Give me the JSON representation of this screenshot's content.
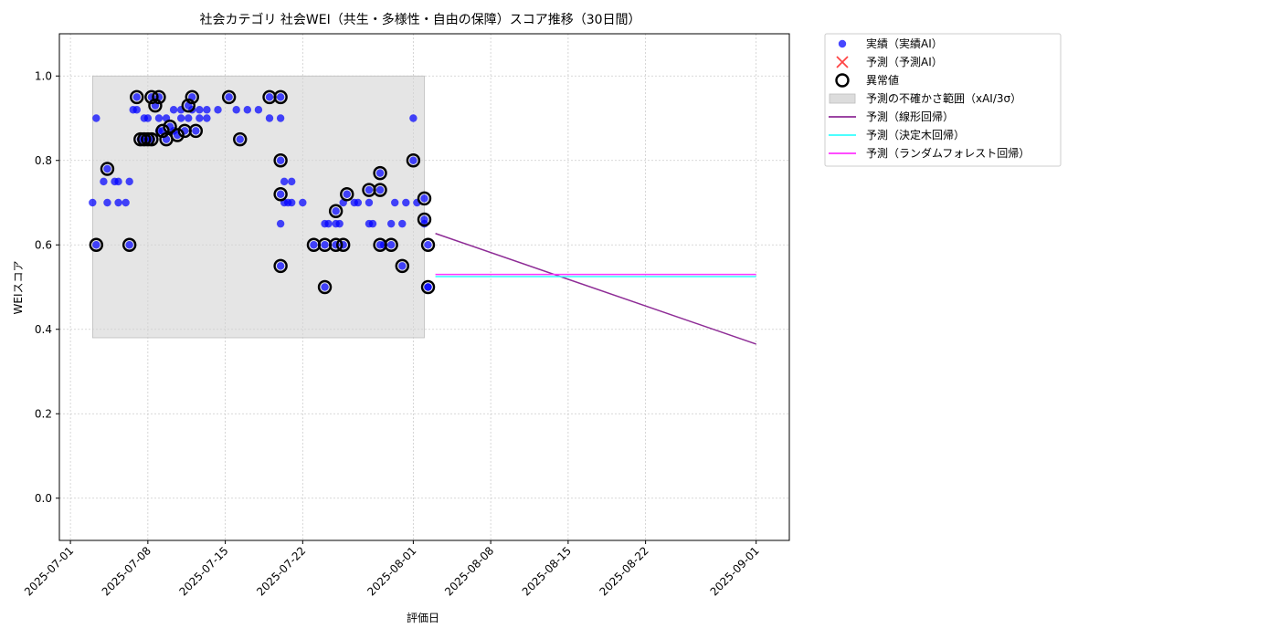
{
  "chart_data": {
    "type": "scatter",
    "title": "社会カテゴリ 社会WEI（共生・多様性・自由の保障）スコア推移（30日間）",
    "xlabel": "評価日",
    "ylabel": "WEIスコア",
    "xlim": [
      "2025-06-30",
      "2025-09-04"
    ],
    "ylim": [
      -0.1,
      1.1
    ],
    "grid": true,
    "legend_position": "outside-top-right",
    "x_ticks": [
      "2025-07-01",
      "2025-07-08",
      "2025-07-15",
      "2025-07-22",
      "2025-08-01",
      "2025-08-08",
      "2025-08-15",
      "2025-08-22",
      "2025-09-01"
    ],
    "y_ticks": [
      "0.0",
      "0.2",
      "0.4",
      "0.6",
      "0.8",
      "1.0"
    ],
    "legend": [
      {
        "label": "実績（実績AI）",
        "marker": "dot",
        "color": "#0000ff"
      },
      {
        "label": "予測（予測AI）",
        "marker": "x",
        "color": "#ff4444"
      },
      {
        "label": "異常値",
        "marker": "ring",
        "color": "#000000"
      },
      {
        "label": "予測の不確かさ範囲（xAI/3σ）",
        "marker": "band",
        "color": "#d3d3d3"
      },
      {
        "label": "予測（線形回帰）",
        "marker": "line",
        "color": "#8e2c96"
      },
      {
        "label": "予測（決定木回帰）",
        "marker": "line",
        "color": "#33ffff"
      },
      {
        "label": "予測（ランダムフォレスト回帰）",
        "marker": "line",
        "color": "#ff33ff"
      }
    ],
    "uncertainty_band": {
      "x": [
        "2025-07-03",
        "2025-08-02"
      ],
      "y": [
        0.38,
        1.0
      ]
    },
    "series": [
      {
        "name": "実績（実績AI）",
        "kind": "scatter",
        "color": "#0000ff",
        "points": [
          [
            "2025-07-03 00:00",
            0.7
          ],
          [
            "2025-07-03 08:00",
            0.9
          ],
          [
            "2025-07-03 08:00",
            0.6
          ],
          [
            "2025-07-04 00:00",
            0.75
          ],
          [
            "2025-07-04 08:00",
            0.78
          ],
          [
            "2025-07-04 08:00",
            0.7
          ],
          [
            "2025-07-05 00:00",
            0.75
          ],
          [
            "2025-07-05 08:00",
            0.75
          ],
          [
            "2025-07-05 08:00",
            0.7
          ],
          [
            "2025-07-06 00:00",
            0.7
          ],
          [
            "2025-07-06 08:00",
            0.6
          ],
          [
            "2025-07-06 08:00",
            0.75
          ],
          [
            "2025-07-06 16:00",
            0.92
          ],
          [
            "2025-07-07 00:00",
            0.92
          ],
          [
            "2025-07-07 00:00",
            0.95
          ],
          [
            "2025-07-07 08:00",
            0.85
          ],
          [
            "2025-07-07 16:00",
            0.85
          ],
          [
            "2025-07-07 16:00",
            0.9
          ],
          [
            "2025-07-08 00:00",
            0.9
          ],
          [
            "2025-07-08 00:00",
            0.85
          ],
          [
            "2025-07-08 08:00",
            0.95
          ],
          [
            "2025-07-08 08:00",
            0.85
          ],
          [
            "2025-07-08 16:00",
            0.93
          ],
          [
            "2025-07-09 00:00",
            0.87
          ],
          [
            "2025-07-09 00:00",
            0.9
          ],
          [
            "2025-07-09 00:00",
            0.95
          ],
          [
            "2025-07-09 08:00",
            0.87
          ],
          [
            "2025-07-09 16:00",
            0.9
          ],
          [
            "2025-07-09 16:00",
            0.85
          ],
          [
            "2025-07-10 00:00",
            0.88
          ],
          [
            "2025-07-10 08:00",
            0.92
          ],
          [
            "2025-07-10 08:00",
            0.87
          ],
          [
            "2025-07-10 16:00",
            0.86
          ],
          [
            "2025-07-11 00:00",
            0.9
          ],
          [
            "2025-07-11 00:00",
            0.92
          ],
          [
            "2025-07-11 08:00",
            0.87
          ],
          [
            "2025-07-11 16:00",
            0.93
          ],
          [
            "2025-07-11 16:00",
            0.9
          ],
          [
            "2025-07-12 00:00",
            0.95
          ],
          [
            "2025-07-12 00:00",
            0.92
          ],
          [
            "2025-07-12 08:00",
            0.87
          ],
          [
            "2025-07-12 16:00",
            0.92
          ],
          [
            "2025-07-12 16:00",
            0.9
          ],
          [
            "2025-07-13 08:00",
            0.9
          ],
          [
            "2025-07-13 08:00",
            0.92
          ],
          [
            "2025-07-14 08:00",
            0.92
          ],
          [
            "2025-07-15 08:00",
            0.95
          ],
          [
            "2025-07-16 00:00",
            0.92
          ],
          [
            "2025-07-16 08:00",
            0.85
          ],
          [
            "2025-07-17 00:00",
            0.92
          ],
          [
            "2025-07-18 00:00",
            0.92
          ],
          [
            "2025-07-19 00:00",
            0.95
          ],
          [
            "2025-07-19 00:00",
            0.9
          ],
          [
            "2025-07-20 00:00",
            0.9
          ],
          [
            "2025-07-20 00:00",
            0.95
          ],
          [
            "2025-07-20 00:00",
            0.72
          ],
          [
            "2025-07-20 00:00",
            0.8
          ],
          [
            "2025-07-20 08:00",
            0.75
          ],
          [
            "2025-07-20 08:00",
            0.7
          ],
          [
            "2025-07-20 00:00",
            0.65
          ],
          [
            "2025-07-20 00:00",
            0.55
          ],
          [
            "2025-07-20 16:00",
            0.7
          ],
          [
            "2025-07-21 00:00",
            0.75
          ],
          [
            "2025-07-21 00:00",
            0.7
          ],
          [
            "2025-07-22 00:00",
            0.7
          ],
          [
            "2025-07-23 00:00",
            0.6
          ],
          [
            "2025-07-24 00:00",
            0.6
          ],
          [
            "2025-07-24 00:00",
            0.5
          ],
          [
            "2025-07-24 00:00",
            0.65
          ],
          [
            "2025-07-24 08:00",
            0.65
          ],
          [
            "2025-07-25 00:00",
            0.6
          ],
          [
            "2025-07-25 00:00",
            0.65
          ],
          [
            "2025-07-25 00:00",
            0.68
          ],
          [
            "2025-07-25 08:00",
            0.65
          ],
          [
            "2025-07-25 16:00",
            0.7
          ],
          [
            "2025-07-25 16:00",
            0.6
          ],
          [
            "2025-07-26 00:00",
            0.72
          ],
          [
            "2025-07-26 16:00",
            0.7
          ],
          [
            "2025-07-27 00:00",
            0.7
          ],
          [
            "2025-07-28 00:00",
            0.7
          ],
          [
            "2025-07-28 00:00",
            0.73
          ],
          [
            "2025-07-28 00:00",
            0.65
          ],
          [
            "2025-07-28 08:00",
            0.65
          ],
          [
            "2025-07-29 00:00",
            0.6
          ],
          [
            "2025-07-29 00:00",
            0.77
          ],
          [
            "2025-07-29 00:00",
            0.73
          ],
          [
            "2025-07-29 08:00",
            0.6
          ],
          [
            "2025-07-30 00:00",
            0.6
          ],
          [
            "2025-07-30 00:00",
            0.65
          ],
          [
            "2025-07-30 08:00",
            0.7
          ],
          [
            "2025-07-31 00:00",
            0.55
          ],
          [
            "2025-07-31 00:00",
            0.65
          ],
          [
            "2025-07-31 08:00",
            0.7
          ],
          [
            "2025-08-01 00:00",
            0.9
          ],
          [
            "2025-08-01 00:00",
            0.8
          ],
          [
            "2025-08-01 08:00",
            0.7
          ],
          [
            "2025-08-02 00:00",
            0.71
          ],
          [
            "2025-08-02 00:00",
            0.65
          ],
          [
            "2025-08-02 00:00",
            0.66
          ],
          [
            "2025-08-02 08:00",
            0.6
          ],
          [
            "2025-08-02 08:00",
            0.5
          ],
          [
            "2025-08-02 08:00",
            0.5
          ]
        ]
      },
      {
        "name": "異常値",
        "kind": "ring",
        "color": "#000000",
        "points": [
          [
            "2025-07-03 08:00",
            0.6
          ],
          [
            "2025-07-04 08:00",
            0.78
          ],
          [
            "2025-07-06 08:00",
            0.6
          ],
          [
            "2025-07-07 00:00",
            0.95
          ],
          [
            "2025-07-07 08:00",
            0.85
          ],
          [
            "2025-07-07 16:00",
            0.85
          ],
          [
            "2025-07-08 00:00",
            0.85
          ],
          [
            "2025-07-08 08:00",
            0.95
          ],
          [
            "2025-07-08 08:00",
            0.85
          ],
          [
            "2025-07-08 16:00",
            0.93
          ],
          [
            "2025-07-09 00:00",
            0.95
          ],
          [
            "2025-07-09 08:00",
            0.87
          ],
          [
            "2025-07-09 16:00",
            0.85
          ],
          [
            "2025-07-10 00:00",
            0.88
          ],
          [
            "2025-07-10 16:00",
            0.86
          ],
          [
            "2025-07-11 08:00",
            0.87
          ],
          [
            "2025-07-11 16:00",
            0.93
          ],
          [
            "2025-07-12 00:00",
            0.95
          ],
          [
            "2025-07-12 08:00",
            0.87
          ],
          [
            "2025-07-15 08:00",
            0.95
          ],
          [
            "2025-07-16 08:00",
            0.85
          ],
          [
            "2025-07-19 00:00",
            0.95
          ],
          [
            "2025-07-20 00:00",
            0.95
          ],
          [
            "2025-07-20 00:00",
            0.8
          ],
          [
            "2025-07-20 00:00",
            0.72
          ],
          [
            "2025-07-20 00:00",
            0.55
          ],
          [
            "2025-07-23 00:00",
            0.6
          ],
          [
            "2025-07-24 00:00",
            0.6
          ],
          [
            "2025-07-24 00:00",
            0.5
          ],
          [
            "2025-07-25 00:00",
            0.6
          ],
          [
            "2025-07-25 00:00",
            0.68
          ],
          [
            "2025-07-25 16:00",
            0.6
          ],
          [
            "2025-07-26 00:00",
            0.72
          ],
          [
            "2025-07-28 00:00",
            0.73
          ],
          [
            "2025-07-29 00:00",
            0.6
          ],
          [
            "2025-07-29 00:00",
            0.77
          ],
          [
            "2025-07-29 00:00",
            0.73
          ],
          [
            "2025-07-30 00:00",
            0.6
          ],
          [
            "2025-07-31 00:00",
            0.55
          ],
          [
            "2025-08-01 00:00",
            0.8
          ],
          [
            "2025-08-02 00:00",
            0.71
          ],
          [
            "2025-08-02 00:00",
            0.66
          ],
          [
            "2025-08-02 08:00",
            0.6
          ],
          [
            "2025-08-02 08:00",
            0.5
          ]
        ]
      },
      {
        "name": "予測（線形回帰）",
        "kind": "line",
        "color": "#8e2c96",
        "points": [
          [
            "2025-08-03",
            0.627
          ],
          [
            "2025-09-01",
            0.365
          ]
        ]
      },
      {
        "name": "予測（決定木回帰）",
        "kind": "line",
        "color": "#33ffff",
        "points": [
          [
            "2025-08-03",
            0.525
          ],
          [
            "2025-09-01",
            0.525
          ]
        ]
      },
      {
        "name": "予測（ランダムフォレスト回帰）",
        "kind": "line",
        "color": "#ff33ff",
        "points": [
          [
            "2025-08-03",
            0.53
          ],
          [
            "2025-09-01",
            0.53
          ]
        ]
      }
    ]
  }
}
